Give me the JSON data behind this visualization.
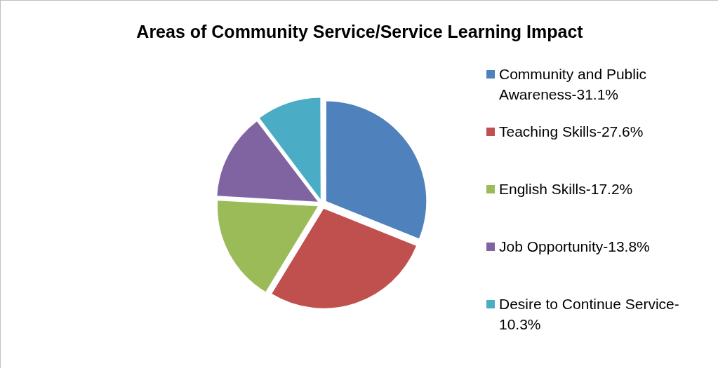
{
  "chart_data": {
    "type": "pie",
    "title": "Areas of Community Service/Service Learning Impact",
    "categories": [
      "Community and Public Awareness-31.1%",
      "Teaching Skills-27.6%",
      "English Skills-17.2%",
      "Job Opportunity-13.8%",
      "Desire to Continue Service-10.3%"
    ],
    "values": [
      31.1,
      27.6,
      17.2,
      13.8,
      10.3
    ],
    "colors": [
      "#4f81bd",
      "#c0504d",
      "#9bbb59",
      "#8064a2",
      "#4bacc6"
    ],
    "legend": "right"
  }
}
